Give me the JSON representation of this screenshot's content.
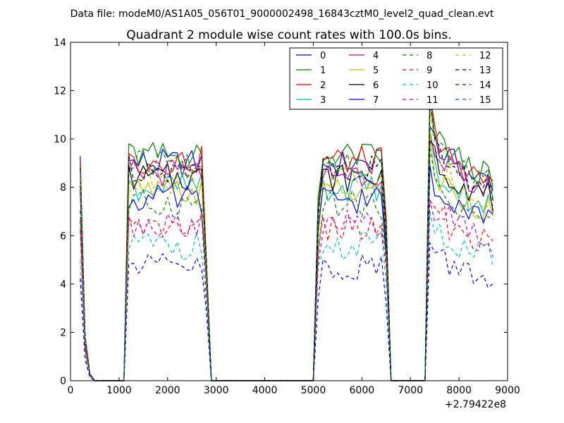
{
  "page_title": "Data file: modeM0/AS1A05_056T01_9000002498_16843cztM0_level2_quad_clean.evt",
  "chart_data": {
    "type": "line",
    "title": "Quadrant 2 module wise count rates with 100.0s bins.",
    "xlabel": "",
    "ylabel": "",
    "x_offset_label": "+2.79422e8",
    "xlim": [
      0,
      9000
    ],
    "ylim": [
      0,
      14
    ],
    "xticks": [
      0,
      1000,
      2000,
      3000,
      4000,
      5000,
      6000,
      7000,
      8000,
      9000
    ],
    "yticks": [
      0,
      2,
      4,
      6,
      8,
      10,
      12,
      14
    ],
    "legend_position": "top-right",
    "x": [
      200,
      300,
      400,
      500,
      600,
      700,
      800,
      900,
      1000,
      1100,
      1200,
      1300,
      1400,
      1500,
      1600,
      1700,
      1800,
      1900,
      2000,
      2100,
      2200,
      2300,
      2400,
      2500,
      2600,
      2700,
      2800,
      2900,
      3000,
      3100,
      3200,
      3300,
      3400,
      3500,
      3600,
      3700,
      3800,
      3900,
      4000,
      4100,
      4200,
      4300,
      4400,
      4500,
      4600,
      4700,
      4800,
      4900,
      5000,
      5100,
      5200,
      5300,
      5400,
      5500,
      5600,
      5700,
      5800,
      5900,
      6000,
      6100,
      6200,
      6300,
      6400,
      6500,
      6600,
      6700,
      6800,
      6900,
      7000,
      7100,
      7200,
      7300,
      7400,
      7500,
      7600,
      7700,
      7800,
      7900,
      8000,
      8100,
      8200,
      8300,
      8400,
      8500,
      8600,
      8700
    ],
    "segments": [
      {
        "from": 200,
        "to": 800,
        "ratio": [
          1.0,
          0.2,
          0.03,
          0,
          0,
          0,
          0
        ]
      },
      {
        "from": 1100,
        "to": 2900,
        "ratio": [
          0,
          1.0,
          1.0,
          1.0,
          1.0,
          1.0,
          1.0,
          1.0,
          1.0,
          1.0,
          1.0,
          1.0,
          1.0,
          1.0,
          1.0,
          1.0,
          1.0,
          0.55,
          0
        ]
      },
      {
        "from": 5000,
        "to": 6600,
        "ratio": [
          0,
          0.8,
          1.0,
          1.0,
          1.0,
          1.0,
          1.0,
          1.0,
          1.0,
          1.0,
          1.0,
          1.0,
          1.0,
          1.0,
          1.0,
          0.7,
          0
        ]
      },
      {
        "from": 7300,
        "to": 8700,
        "ratio": [
          0,
          1.25,
          1.1,
          1.05,
          1.05,
          1.02,
          1.0,
          0.99,
          0.97,
          0.95,
          0.94,
          0.93,
          0.92,
          0.92,
          0.86
        ]
      }
    ],
    "series": [
      {
        "name": "0",
        "color": "#0000ff",
        "style": "solid",
        "base": 9.0
      },
      {
        "name": "1",
        "color": "#008000",
        "style": "solid",
        "base": 9.3
      },
      {
        "name": "2",
        "color": "#ff0000",
        "style": "solid",
        "base": 9.1
      },
      {
        "name": "3",
        "color": "#00bfbf",
        "style": "solid",
        "base": 8.0
      },
      {
        "name": "4",
        "color": "#bf00bf",
        "style": "solid",
        "base": 8.6
      },
      {
        "name": "5",
        "color": "#bfbf00",
        "style": "solid",
        "base": 7.8
      },
      {
        "name": "6",
        "color": "#000000",
        "style": "solid",
        "base": 8.4
      },
      {
        "name": "7",
        "color": "#0000ff",
        "style": "solid",
        "base": 7.5
      },
      {
        "name": "8",
        "color": "#008000",
        "style": "dashed",
        "base": 7.3
      },
      {
        "name": "9",
        "color": "#ff0000",
        "style": "dashed",
        "base": 6.3
      },
      {
        "name": "10",
        "color": "#00bfbf",
        "style": "dashed",
        "base": 5.6
      },
      {
        "name": "11",
        "color": "#bf00bf",
        "style": "dashed",
        "base": 6.5
      },
      {
        "name": "12",
        "color": "#bfbf00",
        "style": "dashed",
        "base": 8.3
      },
      {
        "name": "13",
        "color": "#000000",
        "style": "dashed",
        "base": 8.8
      },
      {
        "name": "14",
        "color": "#0000ff",
        "style": "dashed",
        "base": 4.7
      },
      {
        "name": "15",
        "color": "#008000",
        "style": "dashed",
        "base": 9.0
      }
    ]
  }
}
